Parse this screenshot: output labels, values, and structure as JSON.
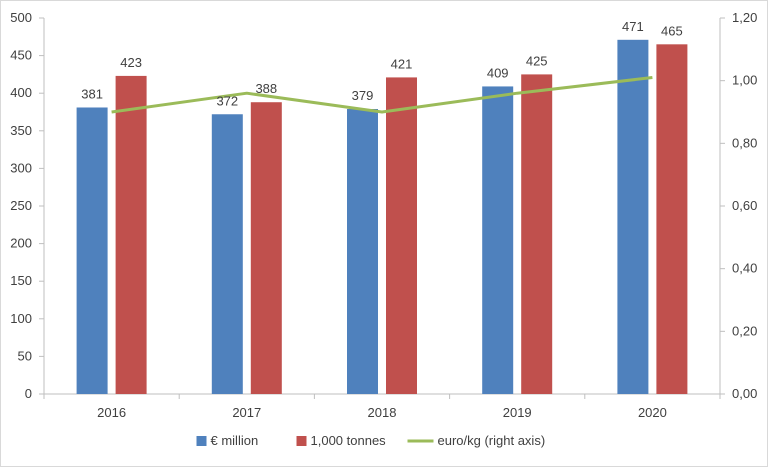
{
  "chart_data": {
    "type": "bar",
    "categories": [
      "2016",
      "2017",
      "2018",
      "2019",
      "2020"
    ],
    "series": [
      {
        "name": "€ million",
        "kind": "bar",
        "axis": "left",
        "color": "#4f81bd",
        "values": [
          381,
          372,
          379,
          409,
          471
        ],
        "data_labels": true
      },
      {
        "name": "1,000 tonnes",
        "kind": "bar",
        "axis": "left",
        "color": "#c0504d",
        "values": [
          423,
          388,
          421,
          425,
          465
        ],
        "data_labels": true
      },
      {
        "name": "euro/kg (right axis)",
        "kind": "line",
        "axis": "right",
        "color": "#9bbb59",
        "values": [
          0.9,
          0.96,
          0.9,
          0.96,
          1.01
        ],
        "data_labels": false
      }
    ],
    "y_left": {
      "min": 0,
      "max": 500,
      "step": 50,
      "ticks": [
        "0",
        "50",
        "100",
        "150",
        "200",
        "250",
        "300",
        "350",
        "400",
        "450",
        "500"
      ]
    },
    "y_right": {
      "min": 0,
      "max": 1.2,
      "step": 0.2,
      "ticks": [
        "0,00",
        "0,20",
        "0,40",
        "0,60",
        "0,80",
        "1,00",
        "1,20"
      ]
    },
    "title": "",
    "xlabel": "",
    "ylabel": "",
    "grid": false,
    "legend": "bottom"
  }
}
